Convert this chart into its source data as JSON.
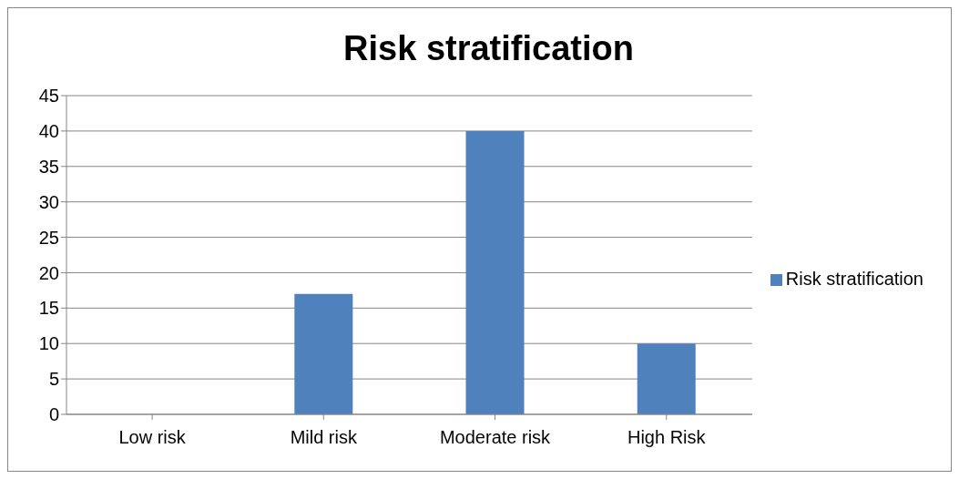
{
  "chart_data": {
    "type": "bar",
    "title": "Risk stratification",
    "categories": [
      "Low risk",
      "Mild risk",
      "Moderate risk",
      "High Risk"
    ],
    "series": [
      {
        "name": "Risk stratification",
        "color": "#4f81bd",
        "values": [
          0,
          17,
          40,
          10
        ]
      }
    ],
    "ylim": [
      0,
      45
    ],
    "yticks": [
      0,
      5,
      10,
      15,
      20,
      25,
      30,
      35,
      40,
      45
    ],
    "grid": "y",
    "legend": "right"
  }
}
